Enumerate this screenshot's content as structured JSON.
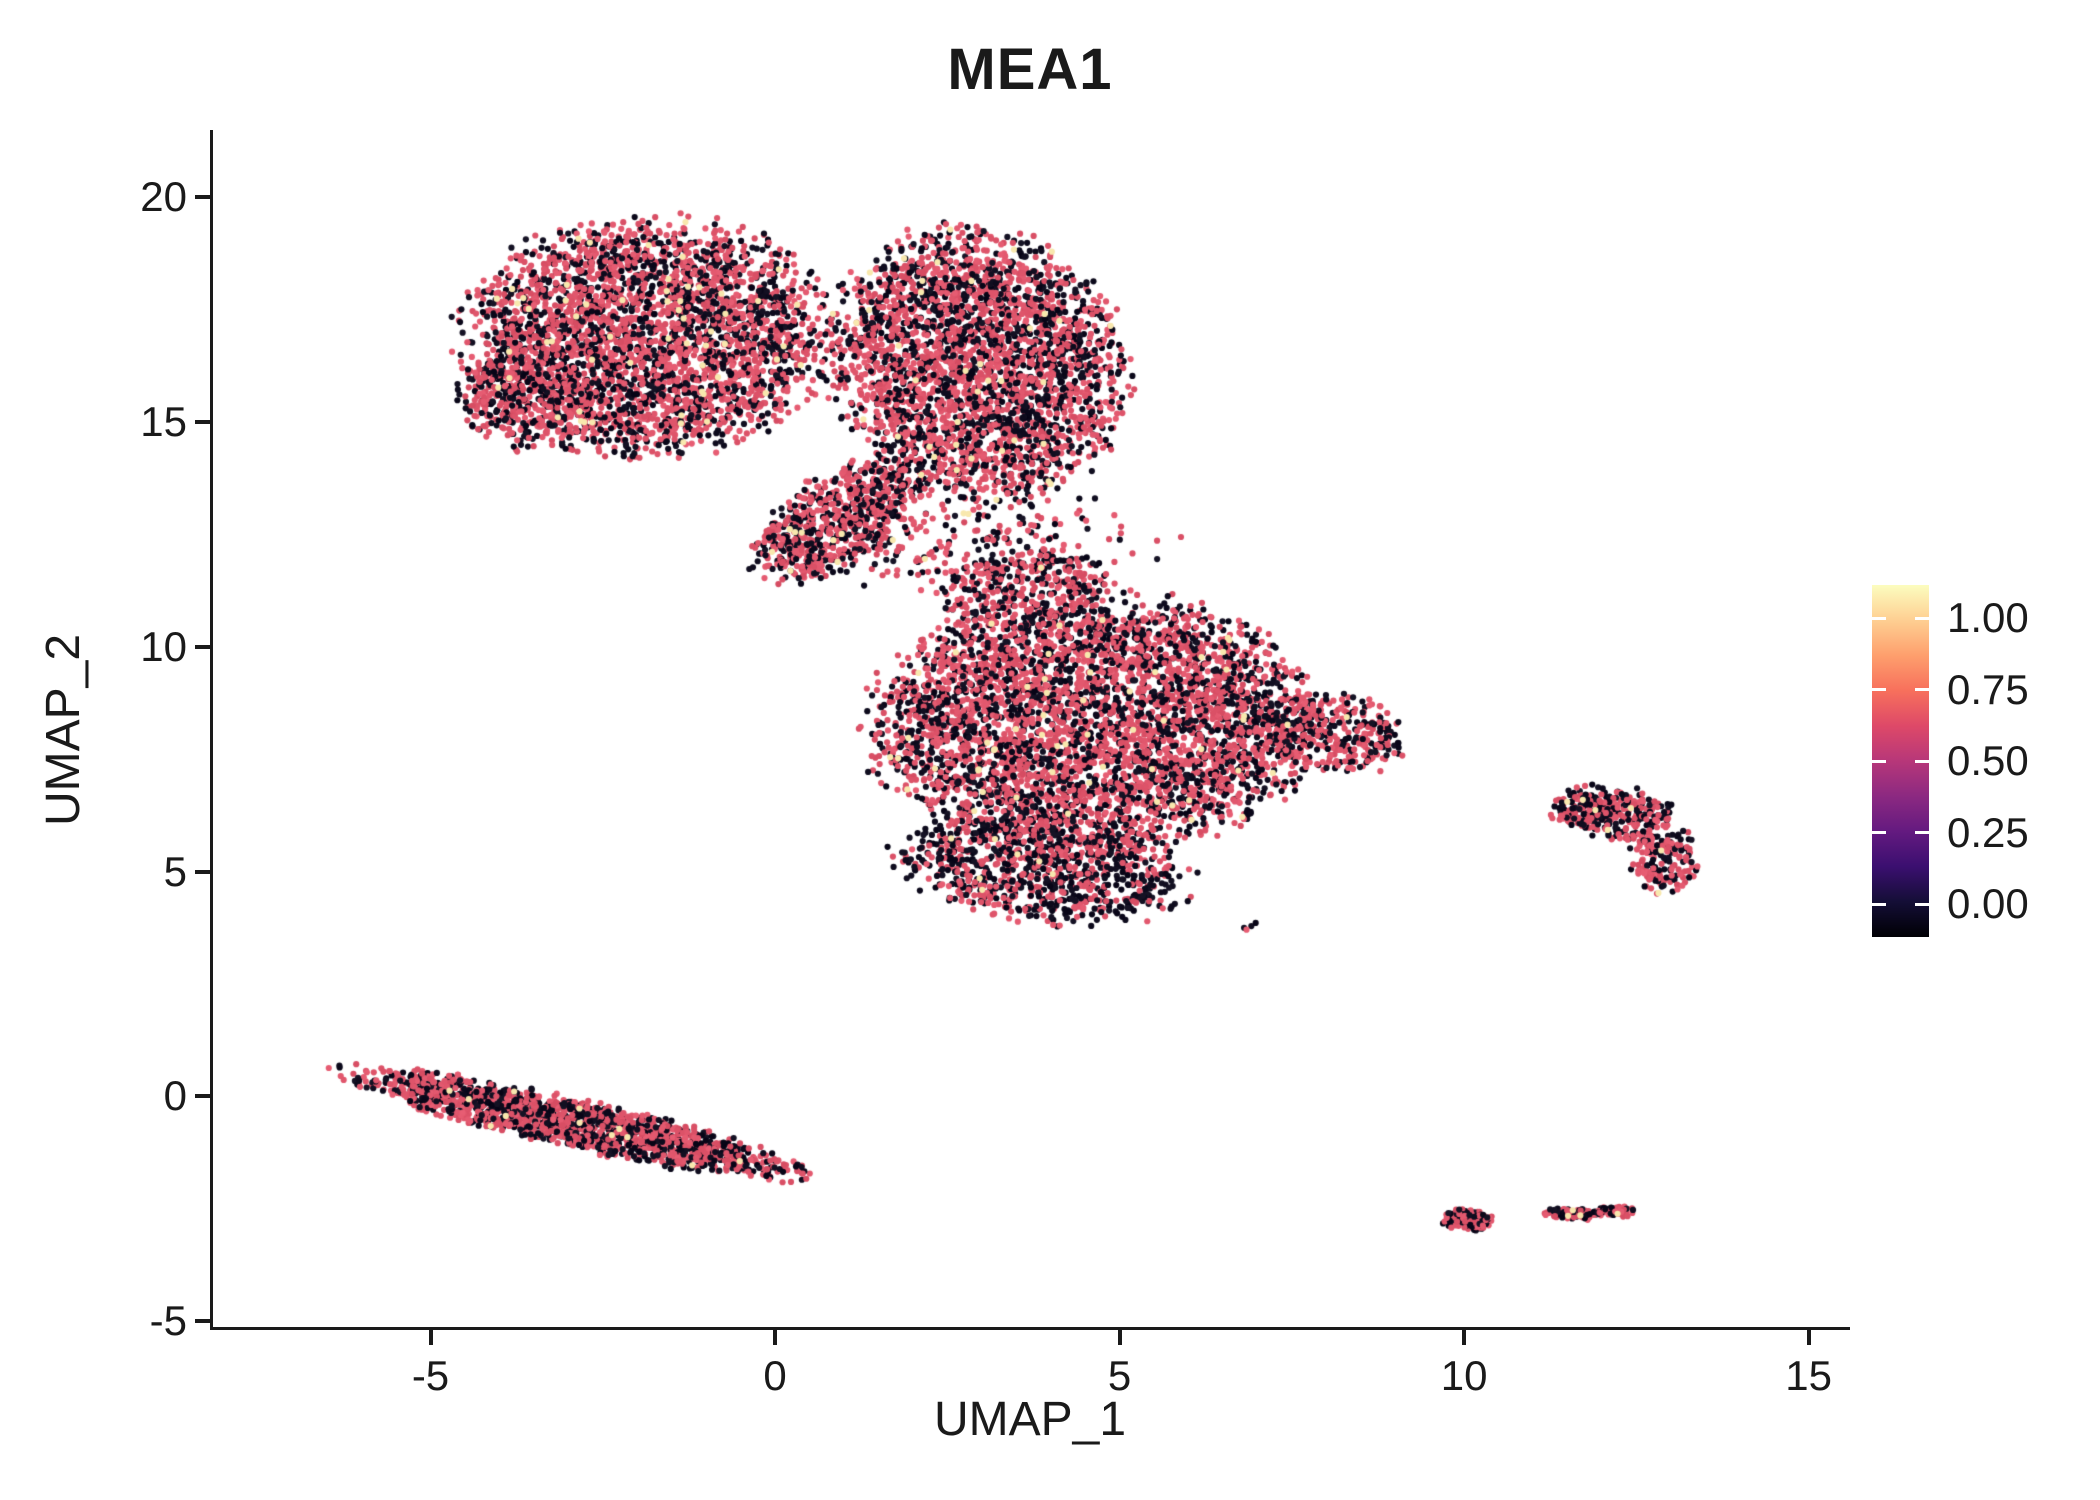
{
  "chart_data": {
    "type": "scatter",
    "title": "MEA1",
    "xlabel": "UMAP_1",
    "ylabel": "UMAP_2",
    "xlim": [
      -8.2,
      15.6
    ],
    "ylim": [
      -5.2,
      21.5
    ],
    "x_ticks": [
      -5,
      0,
      5,
      10,
      15
    ],
    "y_ticks": [
      -5,
      0,
      5,
      10,
      15,
      20
    ],
    "grid": false,
    "legend_position": "right",
    "colormap": "magma",
    "colorbar": {
      "tick_labels": [
        "1.00",
        "0.75",
        "0.50",
        "0.25",
        "0.00"
      ],
      "tick_values": [
        1.0,
        0.75,
        0.5,
        0.25,
        0.0
      ],
      "gradient_stops": [
        "#000004",
        "#140e36",
        "#3b0f70",
        "#641a80",
        "#8c2981",
        "#b73779",
        "#de4968",
        "#f7705c",
        "#fe9f6d",
        "#fecf92",
        "#fcfdbf"
      ]
    },
    "point_style": {
      "radius_px": 3.1,
      "low_color": "#0a0620",
      "mid_color": "#d94e64",
      "high_color": "#f8e8ae",
      "weights": {
        "low": 0.42,
        "mid": 0.567,
        "high": 0.013
      }
    },
    "clusters": [
      {
        "name": "top-left-lobe",
        "cx": -1.9,
        "cy": 16.9,
        "rx": 2.75,
        "ry": 2.75,
        "angle": -8,
        "n": 3300
      },
      {
        "name": "top-left-edge",
        "cx": -3.7,
        "cy": 15.5,
        "rx": 1.0,
        "ry": 1.2,
        "angle": 25,
        "n": 350
      },
      {
        "name": "top-right-lobe",
        "cx": 2.9,
        "cy": 16.3,
        "rx": 2.2,
        "ry": 3.1,
        "angle": 8,
        "n": 2900
      },
      {
        "name": "top-bridge",
        "cx": 0.9,
        "cy": 12.9,
        "rx": 1.8,
        "ry": 0.85,
        "angle": 52,
        "n": 700
      },
      {
        "name": "bridge-sparse",
        "cx": 2.4,
        "cy": 12.7,
        "rx": 2.0,
        "ry": 1.5,
        "angle": 15,
        "n": 200
      },
      {
        "name": "mid-main",
        "cx": 4.6,
        "cy": 8.3,
        "rx": 3.35,
        "ry": 2.95,
        "angle": 0,
        "n": 4200
      },
      {
        "name": "mid-right-tip",
        "cx": 8.0,
        "cy": 8.1,
        "rx": 1.2,
        "ry": 0.9,
        "angle": -18,
        "n": 360
      },
      {
        "name": "mid-bottom",
        "cx": 3.9,
        "cy": 5.1,
        "rx": 2.3,
        "ry": 1.25,
        "angle": -10,
        "n": 950,
        "weights": {
          "low": 0.55,
          "mid": 0.44,
          "high": 0.01
        }
      },
      {
        "name": "mid-neck",
        "cx": 3.6,
        "cy": 11.3,
        "rx": 1.35,
        "ry": 0.95,
        "angle": 15,
        "n": 340
      },
      {
        "name": "stripe",
        "cx": -2.95,
        "cy": -0.6,
        "rx": 3.6,
        "ry": 0.55,
        "angle": -19,
        "n": 1700
      },
      {
        "name": "right-island-a",
        "cx": 12.2,
        "cy": 6.3,
        "rx": 1.05,
        "ry": 0.6,
        "angle": -20,
        "n": 240
      },
      {
        "name": "right-island-b",
        "cx": 12.85,
        "cy": 5.3,
        "rx": 0.5,
        "ry": 0.85,
        "angle": 8,
        "n": 170
      },
      {
        "name": "right-island-c",
        "cx": 11.7,
        "cy": 6.35,
        "rx": 0.5,
        "ry": 0.4,
        "angle": 0,
        "n": 90
      },
      {
        "name": "south-island-a",
        "cx": 10.0,
        "cy": -2.75,
        "rx": 0.4,
        "ry": 0.24,
        "angle": -10,
        "n": 120
      },
      {
        "name": "south-island-b",
        "cx": 11.55,
        "cy": -2.62,
        "rx": 0.5,
        "ry": 0.13,
        "angle": -4,
        "n": 80
      },
      {
        "name": "south-island-c",
        "cx": 12.15,
        "cy": -2.55,
        "rx": 0.3,
        "ry": 0.14,
        "angle": 0,
        "n": 45
      },
      {
        "name": "gap-noise",
        "cx": 3.2,
        "cy": 12.3,
        "rx": 2.6,
        "ry": 1.5,
        "angle": 0,
        "n": 80
      },
      {
        "name": "stray-points",
        "cx": 6.85,
        "cy": 3.75,
        "rx": 0.15,
        "ry": 0.22,
        "angle": 0,
        "n": 4
      }
    ]
  }
}
